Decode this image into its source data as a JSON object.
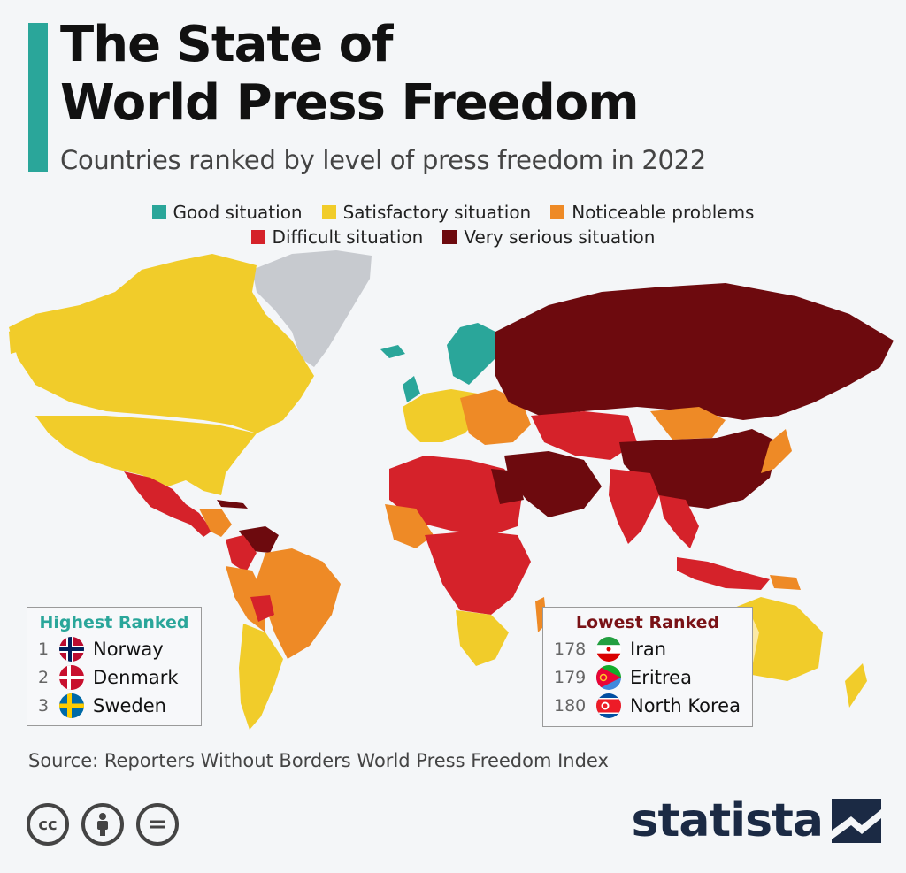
{
  "header": {
    "title_line1": "The State of",
    "title_line2": "World Press Freedom",
    "subtitle": "Countries ranked by level of press freedom in 2022"
  },
  "legend": {
    "items": [
      {
        "label": "Good situation",
        "color": "#2aa69a"
      },
      {
        "label": "Satisfactory situation",
        "color": "#f1cc2a"
      },
      {
        "label": "Noticeable problems",
        "color": "#ee8a26"
      },
      {
        "label": "Difficult situation",
        "color": "#d5222a"
      },
      {
        "label": "Very serious situation",
        "color": "#6d0a0e"
      }
    ],
    "no_data_color": "#c7cacf"
  },
  "highest_ranked": {
    "title": "Highest Ranked",
    "rows": [
      {
        "rank": "1",
        "country": "Norway",
        "flag": "norway-flag-icon"
      },
      {
        "rank": "2",
        "country": "Denmark",
        "flag": "denmark-flag-icon"
      },
      {
        "rank": "3",
        "country": "Sweden",
        "flag": "sweden-flag-icon"
      }
    ]
  },
  "lowest_ranked": {
    "title": "Lowest Ranked",
    "rows": [
      {
        "rank": "178",
        "country": "Iran",
        "flag": "iran-flag-icon"
      },
      {
        "rank": "179",
        "country": "Eritrea",
        "flag": "eritrea-flag-icon"
      },
      {
        "rank": "180",
        "country": "North Korea",
        "flag": "north-korea-flag-icon"
      }
    ]
  },
  "footer": {
    "source": "Source: Reporters Without Borders World Press Freedom Index",
    "license_icons": [
      "cc-icon",
      "attribution-icon",
      "no-derivatives-icon"
    ],
    "cc_label": "cc",
    "nd_label": "=",
    "brand": "statista"
  }
}
